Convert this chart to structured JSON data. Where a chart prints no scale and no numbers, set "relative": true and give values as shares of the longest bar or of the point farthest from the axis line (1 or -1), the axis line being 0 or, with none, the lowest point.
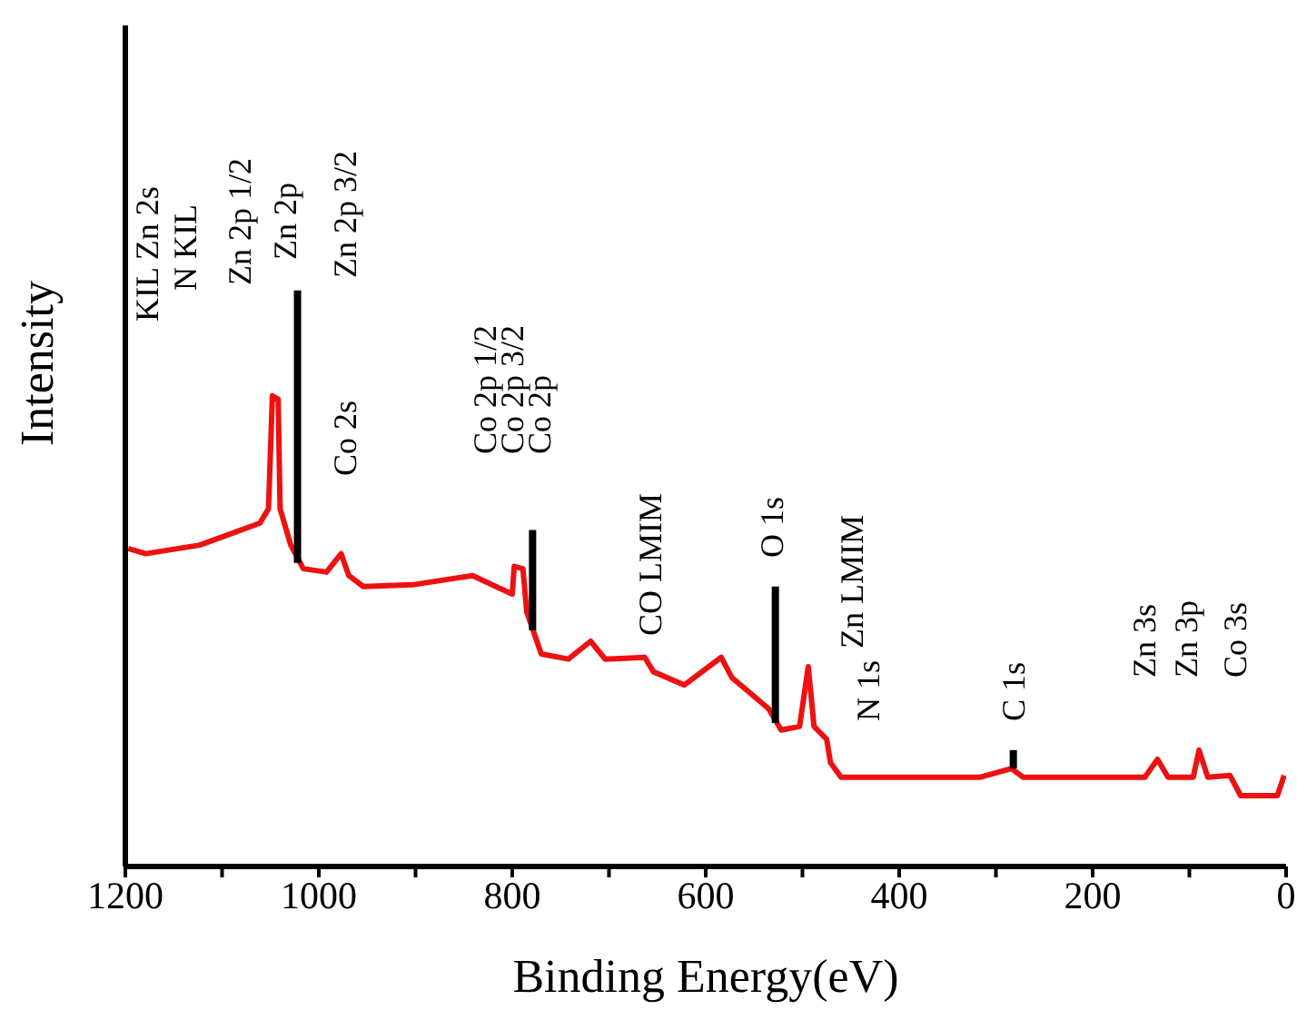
{
  "chart_data": {
    "type": "line",
    "relative": true,
    "xlabel": "Binding Energy(eV)",
    "ylabel": "Intensity",
    "xlim": [
      1200,
      0
    ],
    "xticks": [
      1200,
      {
        "value": 1100,
        "label": null
      },
      1000,
      {
        "value": 900,
        "label": null
      },
      800,
      {
        "value": 700,
        "label": null
      },
      600,
      {
        "value": 500,
        "label": null
      },
      400,
      {
        "value": 300,
        "label": null
      },
      200,
      {
        "value": 100,
        "label": null
      },
      0
    ],
    "series": [
      {
        "color": "#ee1111",
        "x": [
          1197,
          1179,
          1123,
          1061,
          1052,
          1048,
          1042,
          1040,
          1029,
          1016,
          992,
          977,
          969,
          954,
          903,
          841,
          817,
          800,
          798,
          789,
          785,
          770,
          742,
          719,
          704,
          663,
          654,
          622,
          584,
          573,
          535,
          522,
          503,
          494,
          488,
          475,
          471,
          460,
          316,
          284,
          272,
          146,
          133,
          122,
          96,
          90,
          81,
          58,
          47,
          9,
          2
        ],
        "values": [
          0.552,
          0.543,
          0.558,
          0.596,
          0.621,
          0.817,
          0.811,
          0.621,
          0.558,
          0.517,
          0.511,
          0.543,
          0.505,
          0.486,
          0.489,
          0.505,
          0.486,
          0.473,
          0.521,
          0.517,
          0.442,
          0.369,
          0.36,
          0.391,
          0.36,
          0.363,
          0.338,
          0.315,
          0.363,
          0.328,
          0.274,
          0.237,
          0.243,
          0.347,
          0.243,
          0.221,
          0.18,
          0.155,
          0.155,
          0.17,
          0.155,
          0.155,
          0.186,
          0.155,
          0.155,
          0.202,
          0.155,
          0.158,
          0.123,
          0.123,
          0.158
        ]
      },
      {
        "color": "#000000",
        "x": [
          1022,
          1022
        ],
        "values": [
          0.527,
          1
        ]
      },
      {
        "color": "#000000",
        "x": [
          779,
          779
        ],
        "values": [
          0.41,
          0.584
        ]
      },
      {
        "color": "#000000",
        "x": [
          528,
          528
        ],
        "values": [
          0.249,
          0.486
        ]
      },
      {
        "color": "#000000",
        "x": [
          282,
          282
        ],
        "values": [
          0.17,
          0.202
        ]
      }
    ],
    "annotations": [
      "KIL Zn 2s",
      "N KIL",
      "Zn 2p 1/2",
      "Zn 2p",
      "Zn 2p 3/2",
      "Co 2s",
      "Co 2p 1/2",
      "Co 2p 3/2",
      "Co 2p",
      "CO LMIM",
      "O 1s",
      "Zn LMIM",
      "N 1s",
      "C 1s",
      "Zn 3s",
      "Zn 3p",
      "Co 3s"
    ]
  }
}
